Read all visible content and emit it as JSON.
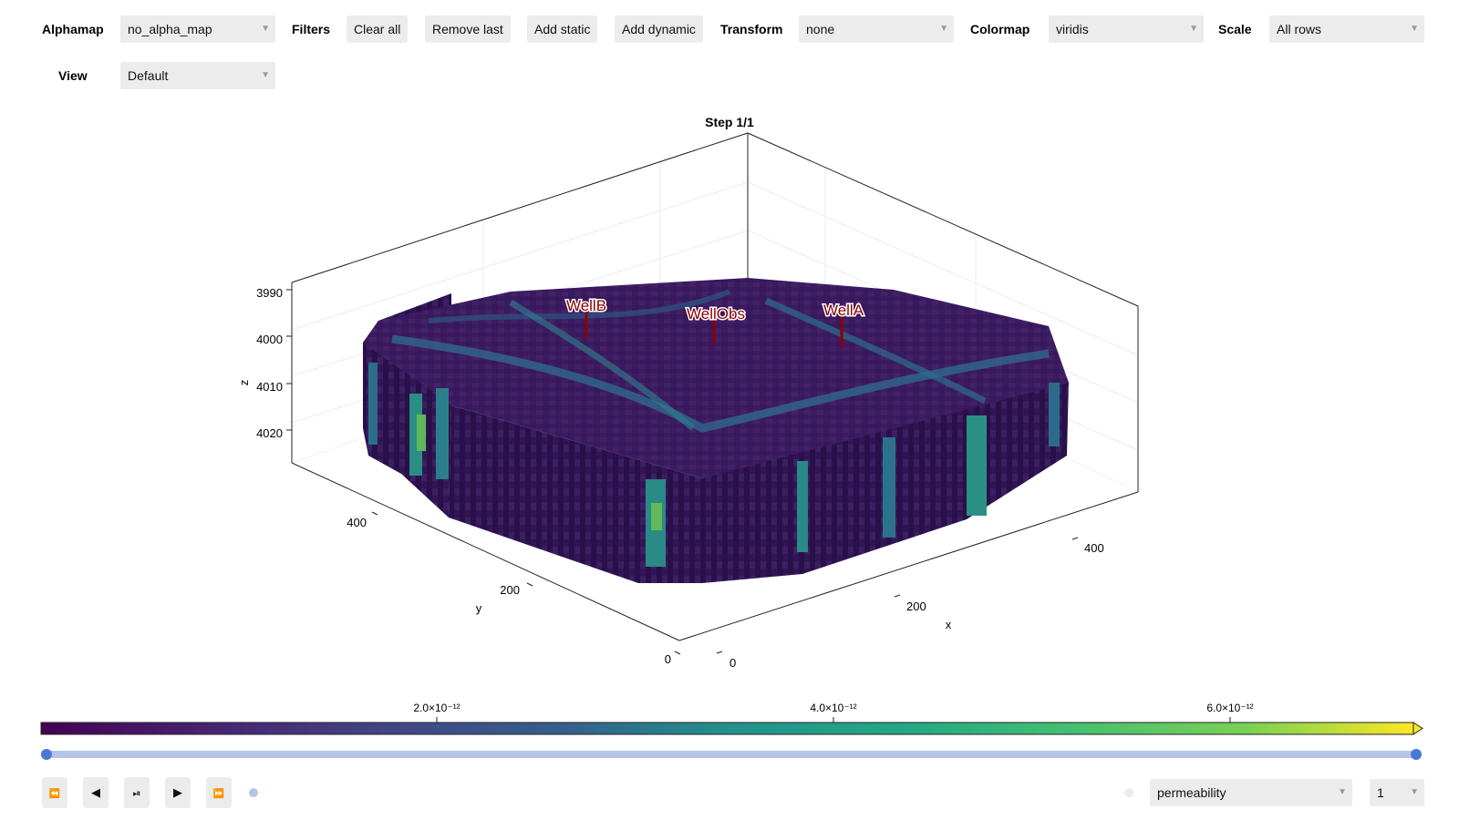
{
  "toolbar": {
    "alphamap_label": "Alphamap",
    "alphamap_value": "no_alpha_map",
    "filters_label": "Filters",
    "clear_all": "Clear all",
    "remove_last": "Remove last",
    "add_static": "Add static",
    "add_dynamic": "Add dynamic",
    "transform_label": "Transform",
    "transform_value": "none",
    "colormap_label": "Colormap",
    "colormap_value": "viridis",
    "scale_label": "Scale",
    "scale_value": "All rows",
    "view_label": "View",
    "view_value": "Default"
  },
  "plot": {
    "title": "Step 1/1",
    "z_label": "z",
    "y_label": "y",
    "x_label": "x",
    "z_ticks": [
      "3990",
      "4000",
      "4010",
      "4020"
    ],
    "y_ticks": [
      "400",
      "200",
      "0"
    ],
    "x_ticks": [
      "0",
      "200",
      "400"
    ],
    "wells": [
      {
        "name": "WellB"
      },
      {
        "name": "WellObs"
      },
      {
        "name": "WellA"
      }
    ],
    "well_color": "#8b0000"
  },
  "colorbar": {
    "colormap": "viridis",
    "ticks": [
      "2.0×10⁻¹²",
      "4.0×10⁻¹²",
      "6.0×10⁻¹²"
    ]
  },
  "timeline": {
    "progress": 1.0,
    "slider_color": "#b3c4e8",
    "handle_color": "#4a78d6"
  },
  "controls": {
    "rewind_icon": "⏪",
    "step_back_icon": "◀",
    "play_pause_icon": "⏯",
    "play_icon": "▶",
    "fast_forward_icon": "⏩",
    "property_value": "permeability",
    "step_value": "1"
  }
}
